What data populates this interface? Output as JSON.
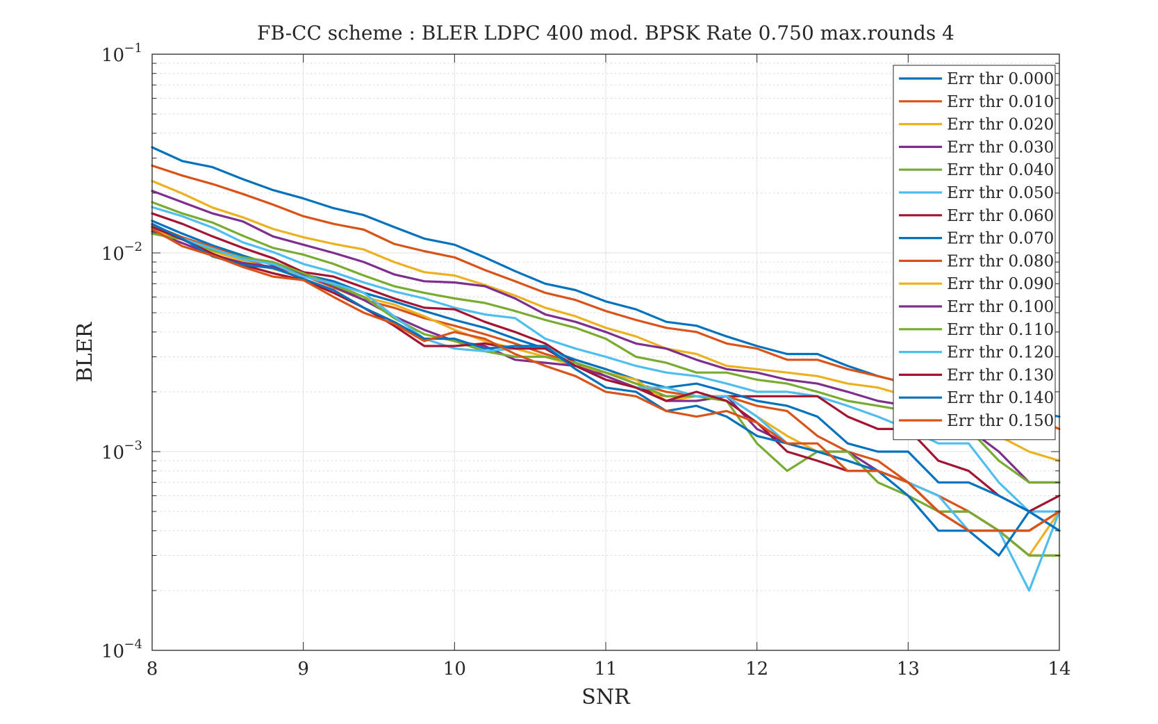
{
  "chart_data": {
    "type": "line",
    "title": "FB-CC scheme : BLER LDPC 400 mod. BPSK Rate 0.750 max.rounds 4",
    "xlabel": "SNR",
    "ylabel": "BLER",
    "xlim": [
      8,
      14
    ],
    "ylim": [
      0.0001,
      0.1
    ],
    "yscale": "log",
    "grid": true,
    "legend_position": "top-right",
    "x_ticks": [
      8,
      9,
      10,
      11,
      12,
      13,
      14
    ],
    "x_tick_labels": [
      "8",
      "9",
      "10",
      "11",
      "12",
      "13",
      "14"
    ],
    "y_ticks": [
      0.0001,
      0.001,
      0.01,
      0.1
    ],
    "y_tick_labels": [
      {
        "base": "10",
        "exp": "−4"
      },
      {
        "base": "10",
        "exp": "−3"
      },
      {
        "base": "10",
        "exp": "−2"
      },
      {
        "base": "10",
        "exp": "−1"
      }
    ],
    "x": [
      8.0,
      8.2,
      8.4,
      8.6,
      8.8,
      9.0,
      9.2,
      9.4,
      9.6,
      9.8,
      10.0,
      10.2,
      10.4,
      10.6,
      10.8,
      11.0,
      11.2,
      11.4,
      11.6,
      11.8,
      12.0,
      12.2,
      12.4,
      12.6,
      12.8,
      13.0,
      13.2,
      13.4,
      13.6,
      13.8,
      14.0
    ],
    "series": [
      {
        "name": "Err thr 0.000",
        "color": "#0072BD",
        "values": [
          0.034,
          0.029,
          0.027,
          0.0235,
          0.0207,
          0.0188,
          0.0168,
          0.0155,
          0.0135,
          0.0118,
          0.011,
          0.0095,
          0.0081,
          0.007,
          0.0065,
          0.0057,
          0.0052,
          0.0045,
          0.0043,
          0.0038,
          0.0034,
          0.0031,
          0.0031,
          0.0027,
          0.0024,
          0.0022,
          0.002,
          0.0019,
          0.0017,
          0.0016,
          0.0015
        ]
      },
      {
        "name": "Err thr 0.010",
        "color": "#D95319",
        "values": [
          0.0275,
          0.0245,
          0.0222,
          0.0198,
          0.0175,
          0.0153,
          0.014,
          0.0131,
          0.0111,
          0.0102,
          0.0095,
          0.0082,
          0.0072,
          0.0063,
          0.0058,
          0.0051,
          0.0046,
          0.0042,
          0.004,
          0.0035,
          0.0033,
          0.0029,
          0.0029,
          0.0026,
          0.0024,
          0.0022,
          0.002,
          0.0018,
          0.0017,
          0.0015,
          0.0013
        ]
      },
      {
        "name": "Err thr 0.020",
        "color": "#EDB120",
        "values": [
          0.023,
          0.0199,
          0.0169,
          0.0151,
          0.0132,
          0.012,
          0.0111,
          0.0104,
          0.009,
          0.008,
          0.0077,
          0.0069,
          0.0061,
          0.0053,
          0.0048,
          0.0042,
          0.0038,
          0.0033,
          0.0031,
          0.0027,
          0.0026,
          0.0025,
          0.0024,
          0.0022,
          0.0021,
          0.0019,
          0.0017,
          0.0015,
          0.0012,
          0.001,
          0.0009
        ]
      },
      {
        "name": "Err thr 0.030",
        "color": "#7E2F8E",
        "values": [
          0.0205,
          0.018,
          0.0158,
          0.0144,
          0.0121,
          0.011,
          0.01,
          0.009,
          0.0078,
          0.0072,
          0.0071,
          0.0068,
          0.0059,
          0.0049,
          0.0045,
          0.004,
          0.0035,
          0.0033,
          0.0029,
          0.0026,
          0.0025,
          0.0023,
          0.0022,
          0.002,
          0.0018,
          0.0017,
          0.0015,
          0.0013,
          0.001,
          0.0007,
          0.0007
        ]
      },
      {
        "name": "Err thr 0.040",
        "color": "#77AC30",
        "values": [
          0.018,
          0.0158,
          0.0142,
          0.0122,
          0.0106,
          0.0098,
          0.0088,
          0.0077,
          0.0068,
          0.0063,
          0.0059,
          0.0056,
          0.0051,
          0.0046,
          0.0042,
          0.0037,
          0.003,
          0.0028,
          0.0025,
          0.0025,
          0.0023,
          0.0022,
          0.002,
          0.0018,
          0.0017,
          0.0016,
          0.0014,
          0.0013,
          0.0009,
          0.0007,
          0.0007
        ]
      },
      {
        "name": "Err thr 0.050",
        "color": "#4DBEEE",
        "values": [
          0.017,
          0.0153,
          0.0134,
          0.0113,
          0.0101,
          0.0088,
          0.008,
          0.0071,
          0.0064,
          0.0059,
          0.0053,
          0.0049,
          0.0047,
          0.0037,
          0.0033,
          0.003,
          0.0027,
          0.0025,
          0.0024,
          0.0022,
          0.002,
          0.002,
          0.0019,
          0.0017,
          0.0015,
          0.0013,
          0.0011,
          0.0011,
          0.0007,
          0.0005,
          0.0005
        ]
      },
      {
        "name": "Err thr 0.060",
        "color": "#A2142F",
        "values": [
          0.0158,
          0.014,
          0.0121,
          0.0106,
          0.0094,
          0.008,
          0.0076,
          0.0067,
          0.0059,
          0.0053,
          0.0052,
          0.0045,
          0.004,
          0.0035,
          0.0028,
          0.0024,
          0.0021,
          0.0019,
          0.0019,
          0.0019,
          0.0019,
          0.0019,
          0.0019,
          0.0015,
          0.0013,
          0.0013,
          0.0009,
          0.0008,
          0.0006,
          0.0005,
          0.0006
        ]
      },
      {
        "name": "Err thr 0.070",
        "color": "#0072BD",
        "values": [
          0.0145,
          0.0125,
          0.0109,
          0.0097,
          0.0087,
          0.0078,
          0.0072,
          0.0063,
          0.0057,
          0.0051,
          0.0046,
          0.0042,
          0.0037,
          0.0033,
          0.0029,
          0.0026,
          0.0023,
          0.0021,
          0.0022,
          0.002,
          0.0018,
          0.0017,
          0.0015,
          0.0011,
          0.001,
          0.001,
          0.0007,
          0.0007,
          0.0006,
          0.0005,
          0.0004
        ]
      },
      {
        "name": "Err thr 0.080",
        "color": "#D95319",
        "values": [
          0.0138,
          0.012,
          0.0107,
          0.0094,
          0.0083,
          0.0077,
          0.0067,
          0.0058,
          0.0053,
          0.0047,
          0.0043,
          0.0039,
          0.0035,
          0.0031,
          0.0028,
          0.0025,
          0.0022,
          0.002,
          0.0019,
          0.0019,
          0.0017,
          0.0016,
          0.0012,
          0.001,
          0.0009,
          0.0007,
          0.0006,
          0.0005,
          0.0004,
          0.0004,
          0.0005
        ]
      },
      {
        "name": "Err thr 0.090",
        "color": "#EDB120",
        "values": [
          0.013,
          0.0118,
          0.0102,
          0.0091,
          0.0083,
          0.0077,
          0.007,
          0.006,
          0.0055,
          0.0048,
          0.0041,
          0.0036,
          0.0033,
          0.003,
          0.0027,
          0.0025,
          0.0023,
          0.0018,
          0.0019,
          0.0019,
          0.0015,
          0.0012,
          0.001,
          0.0009,
          0.0008,
          0.0007,
          0.0005,
          0.0005,
          0.0004,
          0.0003,
          0.0005
        ]
      },
      {
        "name": "Err thr 0.100",
        "color": "#7E2F8E",
        "values": [
          0.0128,
          0.0112,
          0.0098,
          0.0089,
          0.0085,
          0.0078,
          0.0068,
          0.0058,
          0.0048,
          0.0041,
          0.0036,
          0.0034,
          0.0029,
          0.0028,
          0.0027,
          0.0024,
          0.0021,
          0.0018,
          0.0018,
          0.0019,
          0.0013,
          0.0011,
          0.001,
          0.001,
          0.0008,
          0.0007,
          0.0005,
          0.0005,
          0.0004,
          0.0003,
          0.0003
        ]
      },
      {
        "name": "Err thr 0.110",
        "color": "#77AC30",
        "values": [
          0.0125,
          0.0117,
          0.0103,
          0.0095,
          0.009,
          0.0079,
          0.0069,
          0.006,
          0.0047,
          0.0039,
          0.0036,
          0.0032,
          0.003,
          0.003,
          0.0028,
          0.0025,
          0.0022,
          0.0019,
          0.0019,
          0.0018,
          0.0011,
          0.0008,
          0.001,
          0.001,
          0.0007,
          0.0006,
          0.0005,
          0.0005,
          0.0004,
          0.0003,
          0.0003
        ]
      },
      {
        "name": "Err thr 0.120",
        "color": "#4DBEEE",
        "values": [
          0.0135,
          0.0118,
          0.0105,
          0.0093,
          0.0088,
          0.0076,
          0.007,
          0.0063,
          0.0048,
          0.0037,
          0.0033,
          0.0032,
          0.0033,
          0.0034,
          0.0027,
          0.0023,
          0.0021,
          0.0021,
          0.0019,
          0.0019,
          0.0015,
          0.0011,
          0.001,
          0.0009,
          0.0008,
          0.0007,
          0.0006,
          0.0004,
          0.0004,
          0.0002,
          0.0005
        ]
      },
      {
        "name": "Err thr 0.130",
        "color": "#A2142F",
        "values": [
          0.0135,
          0.0117,
          0.0099,
          0.0087,
          0.0079,
          0.0073,
          0.0063,
          0.0053,
          0.0043,
          0.0034,
          0.0034,
          0.0035,
          0.0033,
          0.0033,
          0.0027,
          0.0023,
          0.0021,
          0.0018,
          0.002,
          0.0018,
          0.0014,
          0.001,
          0.0009,
          0.0008,
          0.0008,
          0.0007,
          0.0005,
          0.0004,
          0.0004,
          0.0004,
          0.0005
        ]
      },
      {
        "name": "Err thr 0.140",
        "color": "#0072BD",
        "values": [
          0.014,
          0.0118,
          0.0096,
          0.0087,
          0.0084,
          0.0074,
          0.0065,
          0.0053,
          0.0045,
          0.0037,
          0.0037,
          0.0033,
          0.0034,
          0.0034,
          0.0026,
          0.0021,
          0.002,
          0.0016,
          0.0017,
          0.0015,
          0.0012,
          0.0011,
          0.001,
          0.0009,
          0.0008,
          0.0006,
          0.0004,
          0.0004,
          0.0003,
          0.0005,
          0.0004
        ]
      },
      {
        "name": "Err thr 0.150",
        "color": "#D95319",
        "values": [
          0.0132,
          0.0108,
          0.0097,
          0.0085,
          0.0076,
          0.0073,
          0.006,
          0.005,
          0.0044,
          0.0036,
          0.004,
          0.0037,
          0.0031,
          0.0027,
          0.0024,
          0.002,
          0.0019,
          0.0016,
          0.0015,
          0.0016,
          0.0014,
          0.0011,
          0.0011,
          0.0008,
          0.0008,
          0.0007,
          0.0005,
          0.0004,
          0.0004,
          0.0004,
          0.0005
        ]
      }
    ]
  }
}
